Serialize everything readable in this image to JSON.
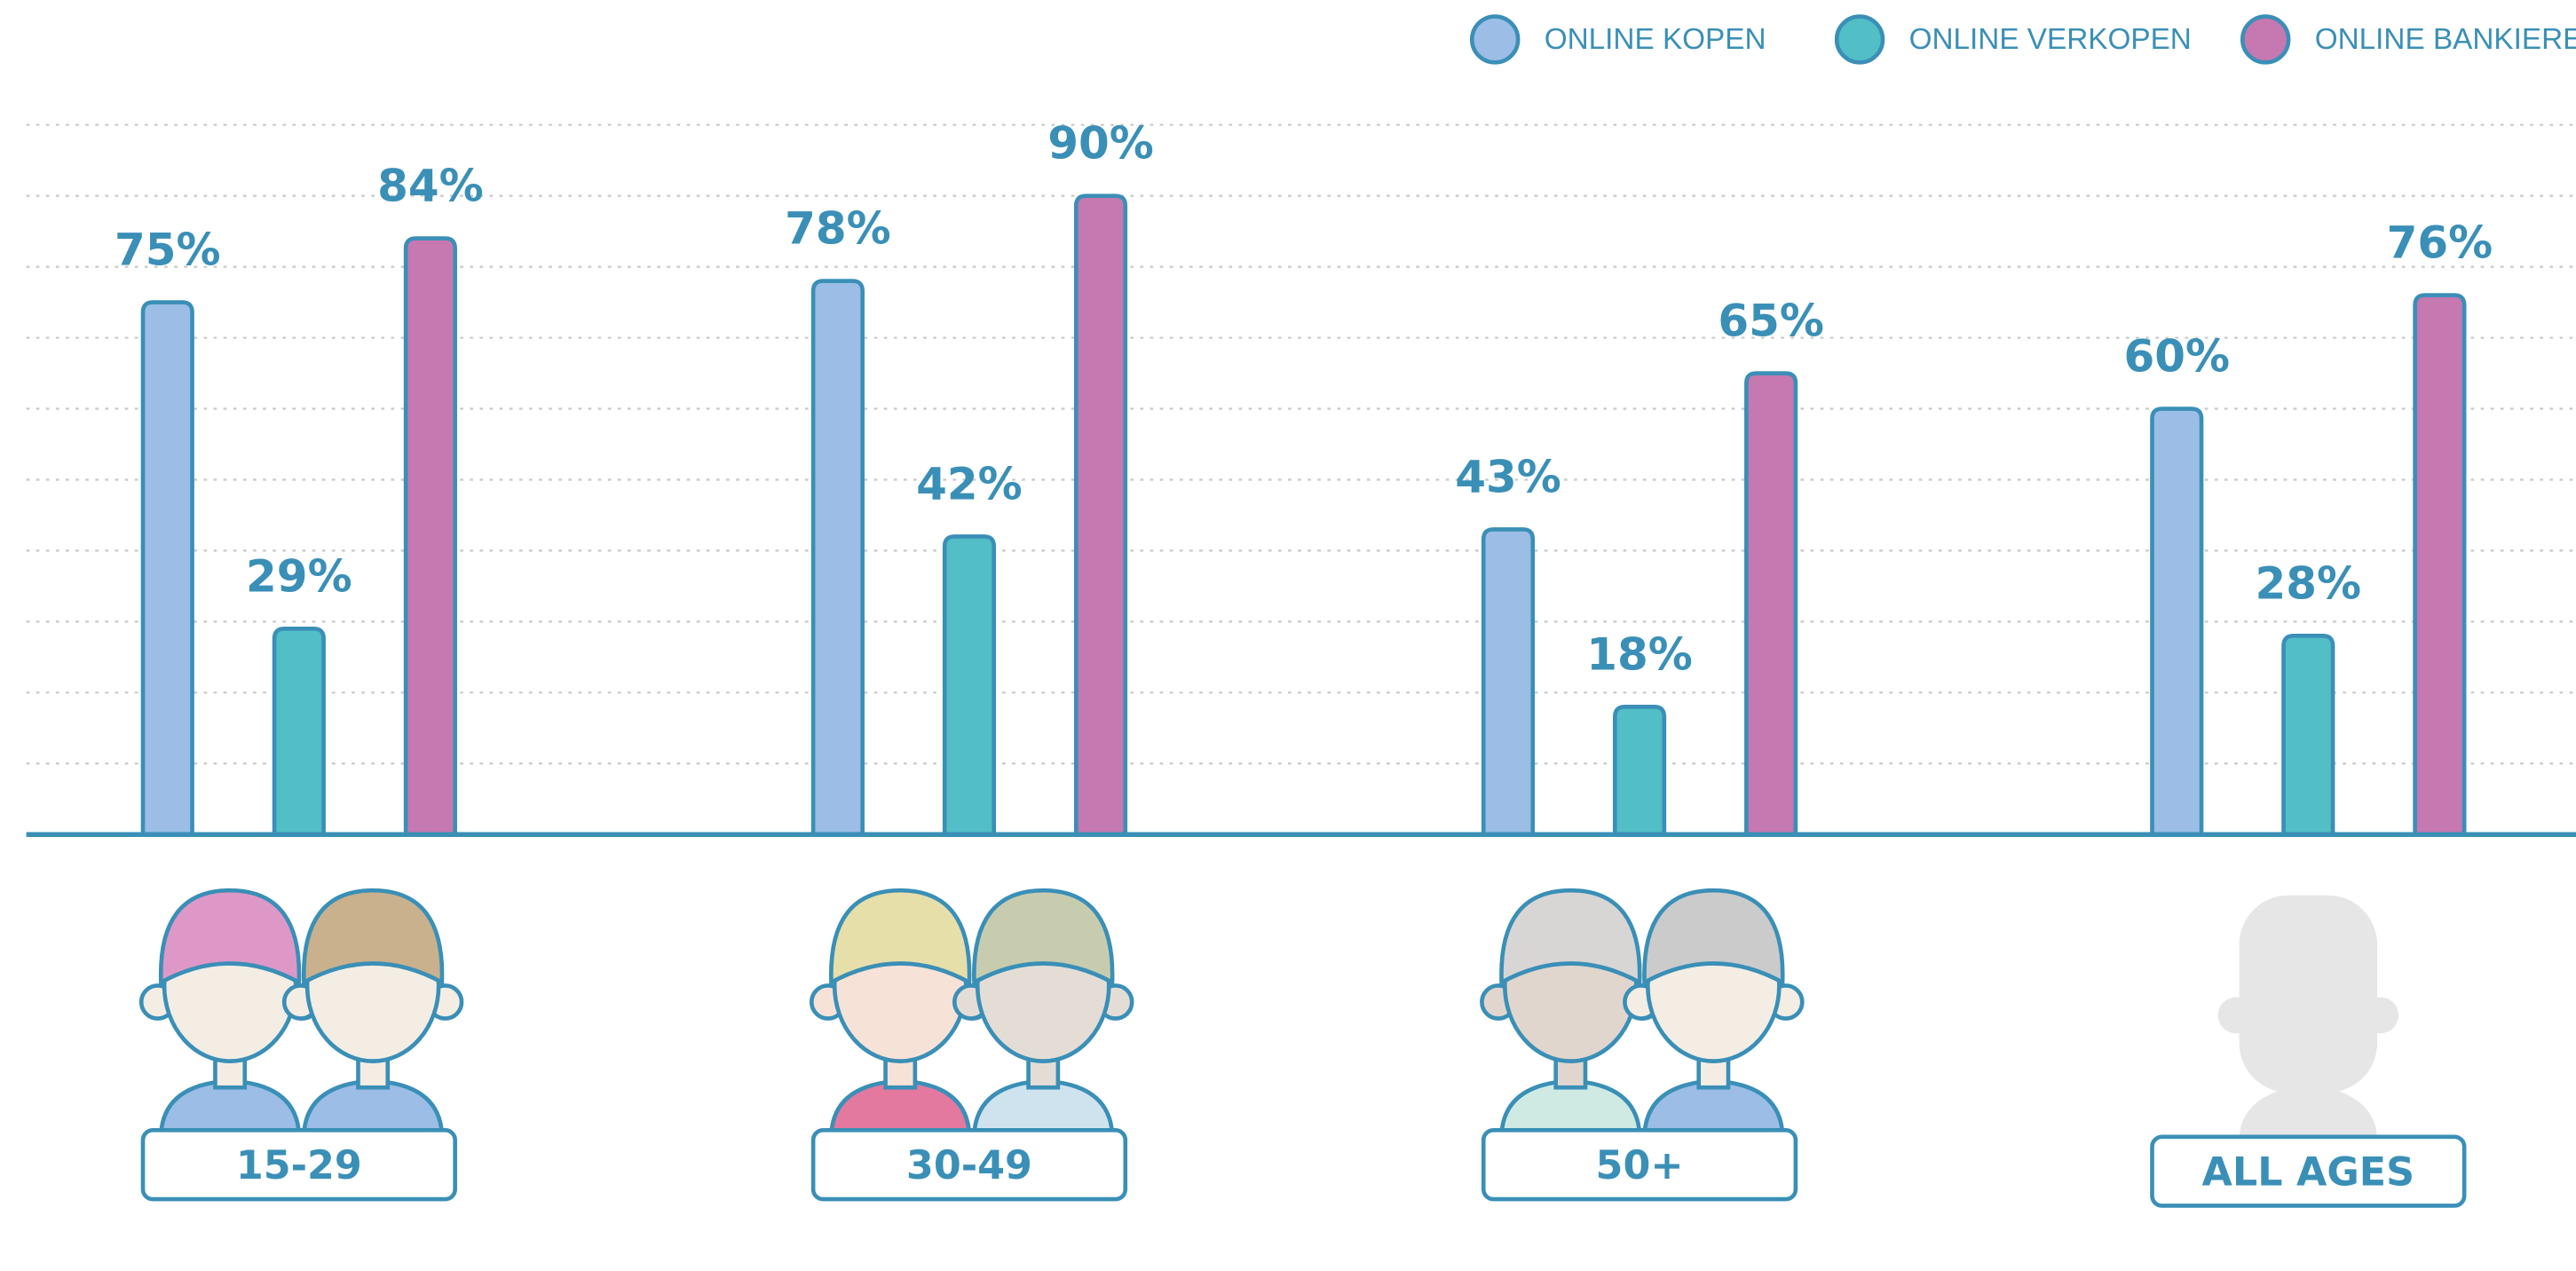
{
  "chart_data": {
    "type": "bar",
    "categories": [
      "15-29",
      "30-49",
      "50+",
      "ALL AGES"
    ],
    "series": [
      {
        "name": "ONLINE KOPEN",
        "color": "#9bbde6",
        "values": [
          75,
          78,
          43,
          60
        ],
        "value_labels": [
          "75%",
          "78%",
          "43%",
          "60%"
        ]
      },
      {
        "name": "ONLINE VERKOPEN",
        "color": "#52bec6",
        "values": [
          29,
          42,
          18,
          28
        ],
        "value_labels": [
          "29%",
          "42%",
          "18%",
          "28%"
        ]
      },
      {
        "name": "ONLINE BANKIEREN",
        "color": "#c678b0",
        "values": [
          84,
          90,
          65,
          76
        ],
        "value_labels": [
          "84%",
          "90%",
          "65%",
          "76%"
        ]
      }
    ],
    "ylim": [
      0,
      100
    ],
    "yticks": [
      10,
      20,
      30,
      40,
      50,
      60,
      70,
      80,
      90,
      100
    ],
    "grid": true,
    "legend": "top-right"
  }
}
